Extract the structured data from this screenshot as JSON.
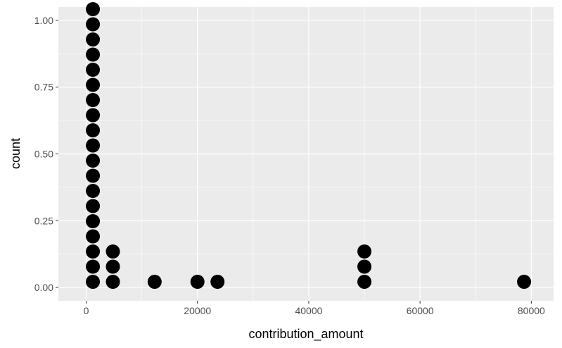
{
  "chart_data": {
    "type": "dotplot",
    "xlabel": "contribution_amount",
    "ylabel": "count",
    "xlim": [
      -5000,
      84000
    ],
    "ylim": [
      -0.05,
      1.05
    ],
    "x_ticks": [
      0,
      20000,
      40000,
      60000,
      80000
    ],
    "x_tick_labels": [
      "0",
      "20000",
      "40000",
      "60000",
      "80000"
    ],
    "y_ticks": [
      0.0,
      0.25,
      0.5,
      0.75,
      1.0
    ],
    "y_tick_labels": [
      "0.00",
      "0.25",
      "0.50",
      "0.75",
      "1.00"
    ],
    "grid": true,
    "dot_color": "#000000",
    "panel_color": "#ebebeb",
    "grid_color": "#ffffff",
    "stacks": [
      {
        "x": 1200,
        "count": 19
      },
      {
        "x": 4800,
        "count": 3
      },
      {
        "x": 12300,
        "count": 1
      },
      {
        "x": 20000,
        "count": 1
      },
      {
        "x": 23600,
        "count": 1
      },
      {
        "x": 50000,
        "count": 3
      },
      {
        "x": 78700,
        "count": 1
      }
    ]
  }
}
